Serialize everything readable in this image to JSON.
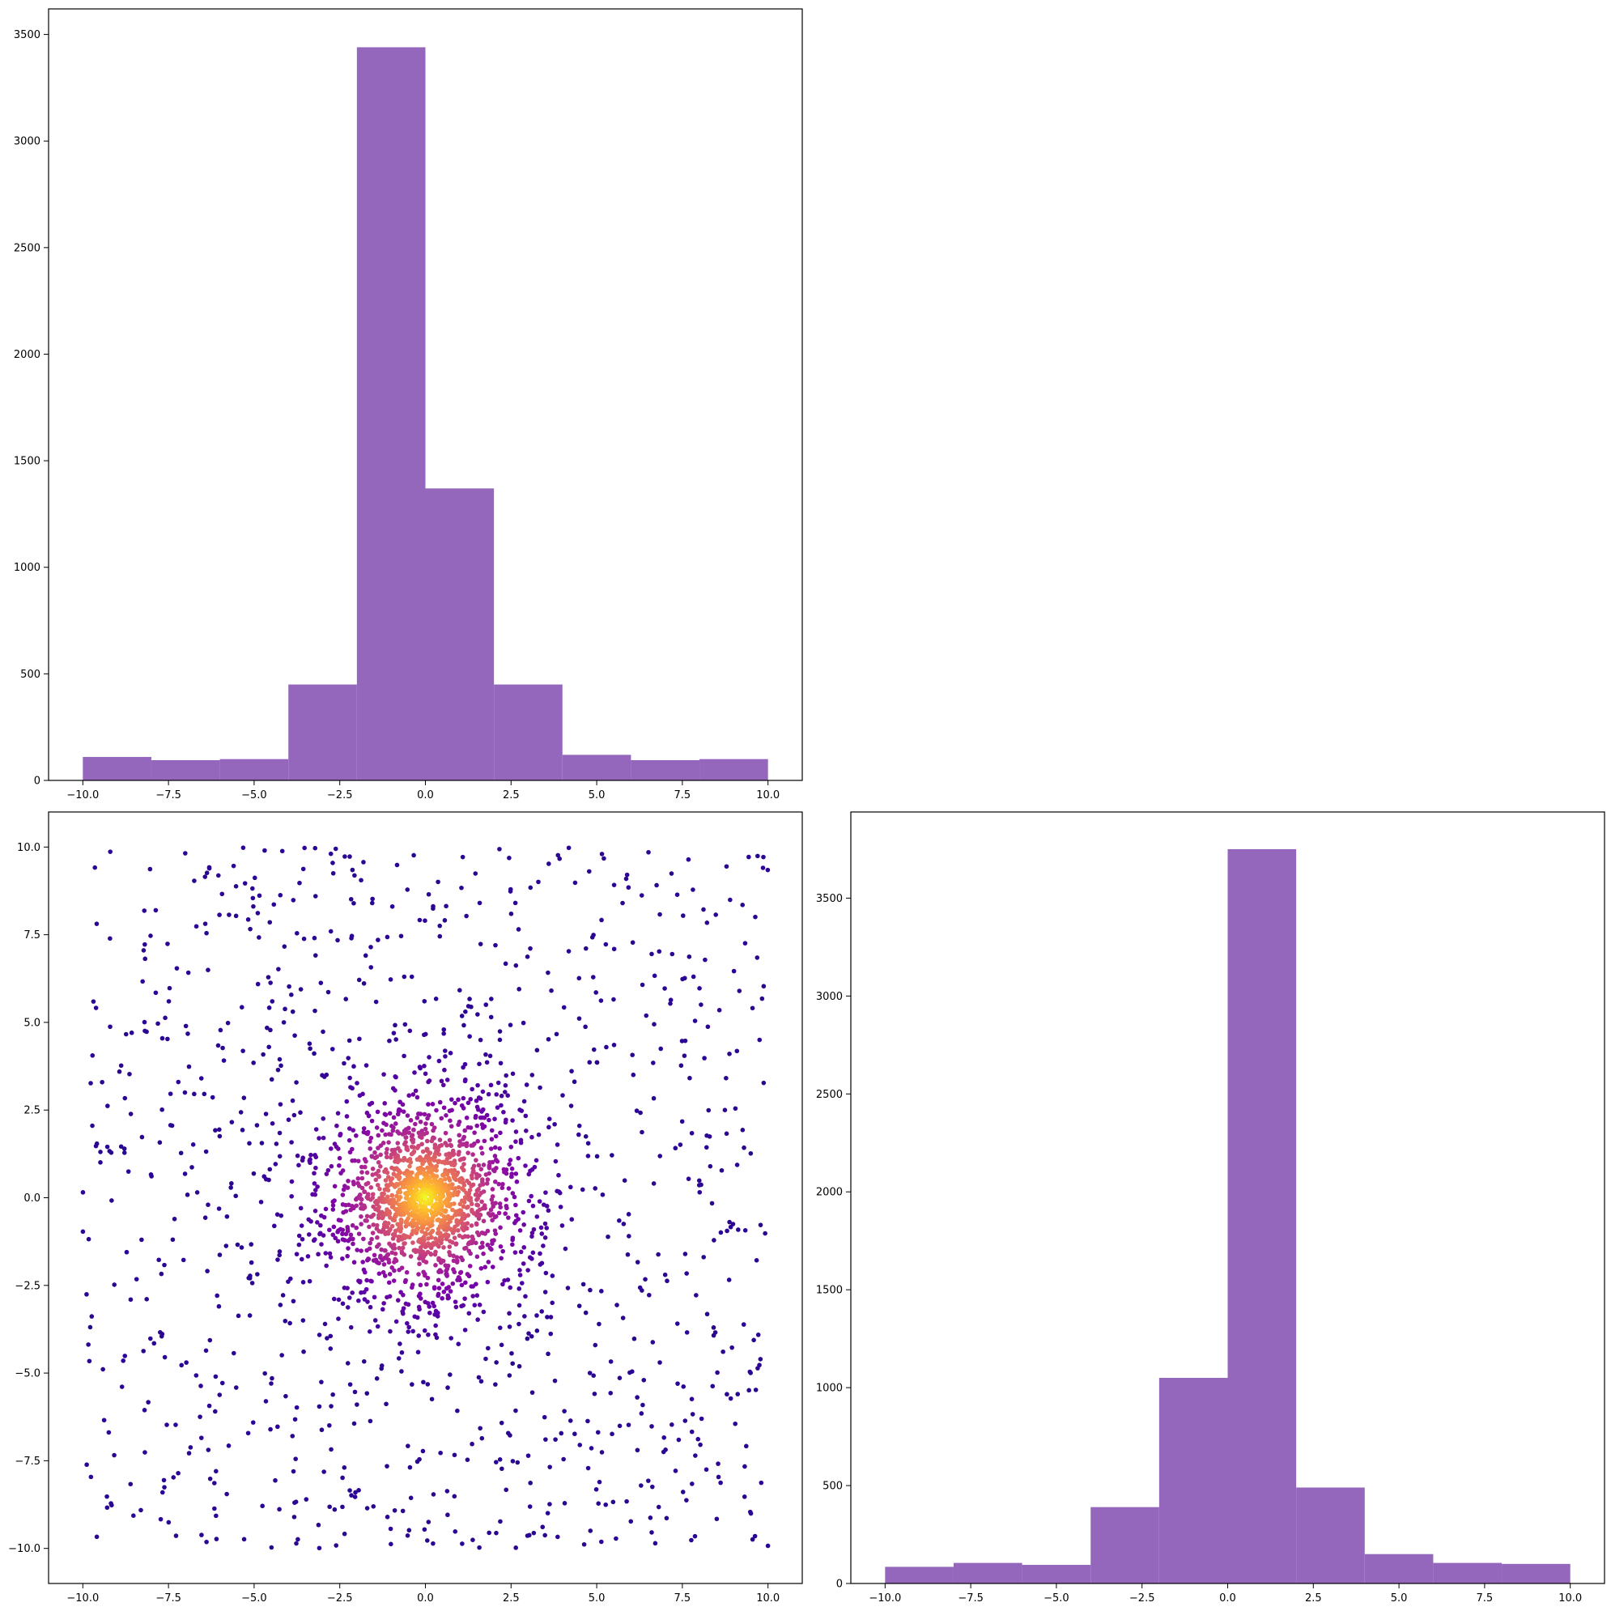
{
  "colors": {
    "bar_fill": "#9467bd",
    "scatter_colormap": "plasma"
  },
  "chart_data": [
    {
      "id": "top-left-histogram",
      "type": "bar",
      "title": "",
      "xlabel": "",
      "ylabel": "",
      "bin_edges": [
        -10,
        -8,
        -6,
        -4,
        -2,
        0,
        2,
        4,
        6,
        8,
        10
      ],
      "values": [
        110,
        95,
        100,
        450,
        3440,
        1370,
        450,
        120,
        95,
        100
      ],
      "xlim": [
        -11,
        11
      ],
      "ylim": [
        0,
        3620
      ],
      "xticks": [
        -10,
        -7.5,
        -5,
        -2.5,
        0,
        2.5,
        5,
        7.5,
        10
      ],
      "xtick_labels": [
        "−10.0",
        "−7.5",
        "−5.0",
        "−2.5",
        "0.0",
        "2.5",
        "5.0",
        "7.5",
        "10.0"
      ],
      "yticks": [
        0,
        500,
        1000,
        1500,
        2000,
        2500,
        3000,
        3500
      ],
      "ytick_labels": [
        "0",
        "500",
        "1000",
        "1500",
        "2000",
        "2500",
        "3000",
        "3500"
      ],
      "grid": false,
      "color": "#9467bd"
    },
    {
      "id": "bottom-left-scatter",
      "type": "scatter",
      "title": "",
      "xlabel": "",
      "ylabel": "",
      "description_of_points": "about 1000 points spread uniformly over [-10,10]x[-10,10] plus a dense cluster of about 1600 points within radius 5 of the origin; color encodes local density with the plasma colormap (dark purple sparse, yellow at the dense center)",
      "uniform_points": 1000,
      "cluster_points": 1600,
      "cluster_radius": 5,
      "cluster_sigma": 1.8,
      "xlim": [
        -11,
        11
      ],
      "ylim": [
        -11,
        11
      ],
      "xticks": [
        -10,
        -7.5,
        -5,
        -2.5,
        0,
        2.5,
        5,
        7.5,
        10
      ],
      "xtick_labels": [
        "−10.0",
        "−7.5",
        "−5.0",
        "−2.5",
        "0.0",
        "2.5",
        "5.0",
        "7.5",
        "10.0"
      ],
      "yticks": [
        -10,
        -7.5,
        -5,
        -2.5,
        0,
        2.5,
        5,
        7.5,
        10
      ],
      "ytick_labels": [
        "−10.0",
        "−7.5",
        "−5.0",
        "−2.5",
        "0.0",
        "2.5",
        "5.0",
        "7.5",
        "10.0"
      ],
      "grid": false
    },
    {
      "id": "bottom-right-histogram",
      "type": "bar",
      "title": "",
      "xlabel": "",
      "ylabel": "",
      "bin_edges": [
        -10,
        -8,
        -6,
        -4,
        -2,
        0,
        2,
        4,
        6,
        8,
        10
      ],
      "values": [
        85,
        105,
        95,
        390,
        1050,
        3750,
        490,
        150,
        105,
        100
      ],
      "xlim": [
        -11,
        11
      ],
      "ylim": [
        0,
        3940
      ],
      "xticks": [
        -10,
        -7.5,
        -5,
        -2.5,
        0,
        2.5,
        5,
        7.5,
        10
      ],
      "xtick_labels": [
        "−10.0",
        "−7.5",
        "−5.0",
        "−2.5",
        "0.0",
        "2.5",
        "5.0",
        "7.5",
        "10.0"
      ],
      "yticks": [
        0,
        500,
        1000,
        1500,
        2000,
        2500,
        3000,
        3500
      ],
      "ytick_labels": [
        "0",
        "500",
        "1000",
        "1500",
        "2000",
        "2500",
        "3000",
        "3500"
      ],
      "grid": false,
      "color": "#9467bd"
    }
  ]
}
